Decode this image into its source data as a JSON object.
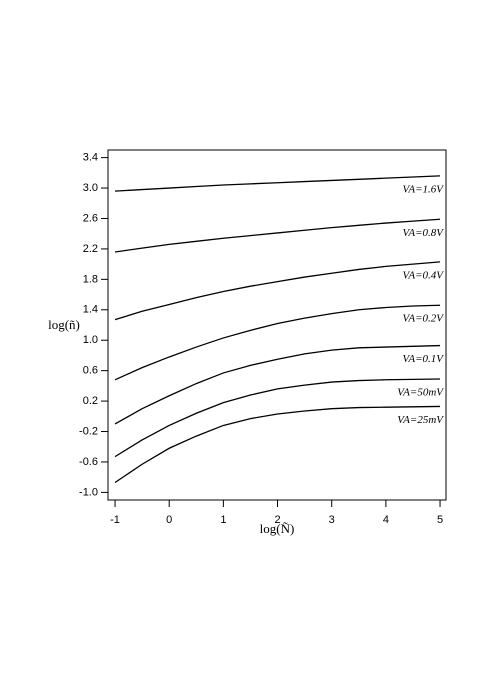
{
  "chart_data": {
    "type": "line",
    "xlabel": "log(Ñ)",
    "ylabel": "log(ñ)",
    "x": [
      -1,
      -0.5,
      0,
      0.5,
      1,
      1.5,
      2,
      2.5,
      3,
      3.5,
      4,
      4.5,
      5
    ],
    "series": [
      {
        "name": "VA=1.6V",
        "color": "#000000",
        "values": [
          2.96,
          2.98,
          3.0,
          3.02,
          3.04,
          3.055,
          3.07,
          3.085,
          3.1,
          3.115,
          3.13,
          3.145,
          3.16
        ]
      },
      {
        "name": "VA=0.8V",
        "color": "#000000",
        "values": [
          2.16,
          2.21,
          2.26,
          2.3,
          2.34,
          2.375,
          2.41,
          2.445,
          2.48,
          2.51,
          2.54,
          2.565,
          2.59
        ]
      },
      {
        "name": "VA=0.4V",
        "color": "#000000",
        "values": [
          1.27,
          1.38,
          1.47,
          1.56,
          1.64,
          1.71,
          1.77,
          1.83,
          1.88,
          1.93,
          1.97,
          2.0,
          2.03
        ]
      },
      {
        "name": "VA=0.2V",
        "color": "#000000",
        "values": [
          0.48,
          0.64,
          0.78,
          0.91,
          1.03,
          1.13,
          1.22,
          1.29,
          1.35,
          1.4,
          1.43,
          1.45,
          1.46
        ]
      },
      {
        "name": "VA=0.1V",
        "color": "#000000",
        "values": [
          -0.1,
          0.1,
          0.27,
          0.43,
          0.57,
          0.67,
          0.75,
          0.82,
          0.87,
          0.9,
          0.91,
          0.92,
          0.93
        ]
      },
      {
        "name": "VA=50mV",
        "color": "#000000",
        "values": [
          -0.53,
          -0.31,
          -0.12,
          0.04,
          0.18,
          0.28,
          0.36,
          0.41,
          0.45,
          0.47,
          0.48,
          0.485,
          0.49
        ]
      },
      {
        "name": "VA=25mV",
        "color": "#000000",
        "values": [
          -0.87,
          -0.63,
          -0.42,
          -0.26,
          -0.12,
          -0.03,
          0.03,
          0.07,
          0.1,
          0.115,
          0.12,
          0.125,
          0.13
        ]
      }
    ],
    "xlim": [
      -1.13,
      5.11
    ],
    "ylim": [
      -1.1,
      3.5
    ],
    "xticks": [
      -1,
      0,
      1,
      2,
      3,
      4,
      5
    ],
    "yticks": [
      3.4,
      {
        "value": 3,
        "label": "3.0"
      },
      2.6,
      2.2,
      1.8,
      1.4,
      {
        "value": 1,
        "label": "1.0"
      },
      0.6,
      0.2,
      -0.2,
      -0.6,
      {
        "value": -1,
        "label": "-1.0"
      }
    ],
    "grid": false
  }
}
